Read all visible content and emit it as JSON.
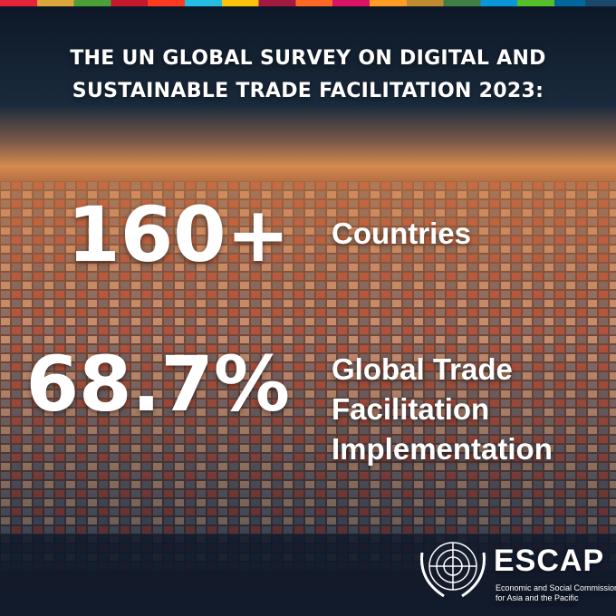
{
  "header": {
    "title_lines": [
      "THE UN GLOBAL SURVEY ON DIGITAL AND",
      "SUSTAINABLE TRADE FACILITATION 2023:"
    ]
  },
  "stats": [
    {
      "value": "160+",
      "label_lines": [
        "Countries"
      ]
    },
    {
      "value": "68.7%",
      "label_lines": [
        "Global Trade",
        "Facilitation",
        "Implementation"
      ]
    }
  ],
  "logo": {
    "name": "ESCAP",
    "subtitle_lines": [
      "Economic and Social Commission",
      "for Asia and the Pacific"
    ]
  }
}
